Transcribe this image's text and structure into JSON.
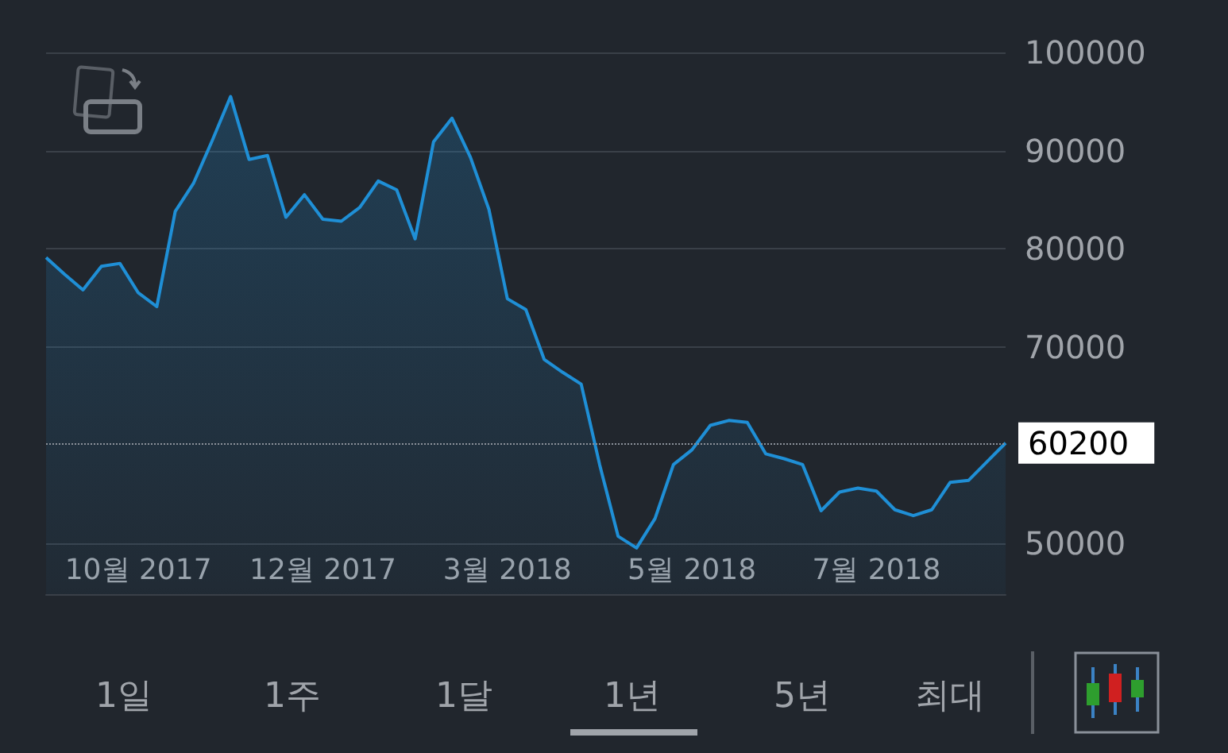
{
  "chart_data": {
    "type": "area",
    "categories": [
      null,
      null,
      null,
      null,
      null,
      "10월 2017",
      null,
      null,
      null,
      null,
      null,
      null,
      null,
      null,
      null,
      "12월 2017",
      null,
      null,
      null,
      null,
      null,
      null,
      null,
      null,
      null,
      "3월 2018",
      null,
      null,
      null,
      null,
      null,
      null,
      null,
      null,
      null,
      "5월 2018",
      null,
      null,
      null,
      null,
      null,
      null,
      null,
      null,
      null,
      "7월 2018",
      null,
      null,
      null,
      null,
      null,
      null,
      null
    ],
    "series": [
      {
        "color": "#1f8fd6",
        "values": [
          79100,
          77400,
          75800,
          78200,
          78500,
          75500,
          74100,
          83800,
          86700,
          91000,
          95500,
          89100,
          89500,
          83200,
          85500,
          83000,
          82800,
          84200,
          86900,
          86000,
          81000,
          90900,
          93300,
          89300,
          84000,
          74900,
          73800,
          68700,
          67400,
          66200,
          58000,
          50700,
          49500,
          52500,
          58000,
          59500,
          62000,
          62500,
          62300,
          59100,
          58600,
          58000,
          53300,
          55200,
          55600,
          55300,
          53400,
          52800,
          53400,
          56200,
          56400,
          58300,
          60200
        ]
      }
    ],
    "ylim": [
      44800,
      100000
    ],
    "yticks": [
      50000,
      70000,
      80000,
      90000,
      100000
    ],
    "grid": "y",
    "marker": "none",
    "line_style": "solid",
    "ref_lines": [
      {
        "axis": "y",
        "value": 60200,
        "label": "60200",
        "line_style": "dotted",
        "color": "#8a9099"
      }
    ],
    "annotations": [
      "1일",
      "1주",
      "1달",
      "1년",
      "5년",
      "최대"
    ]
  }
}
